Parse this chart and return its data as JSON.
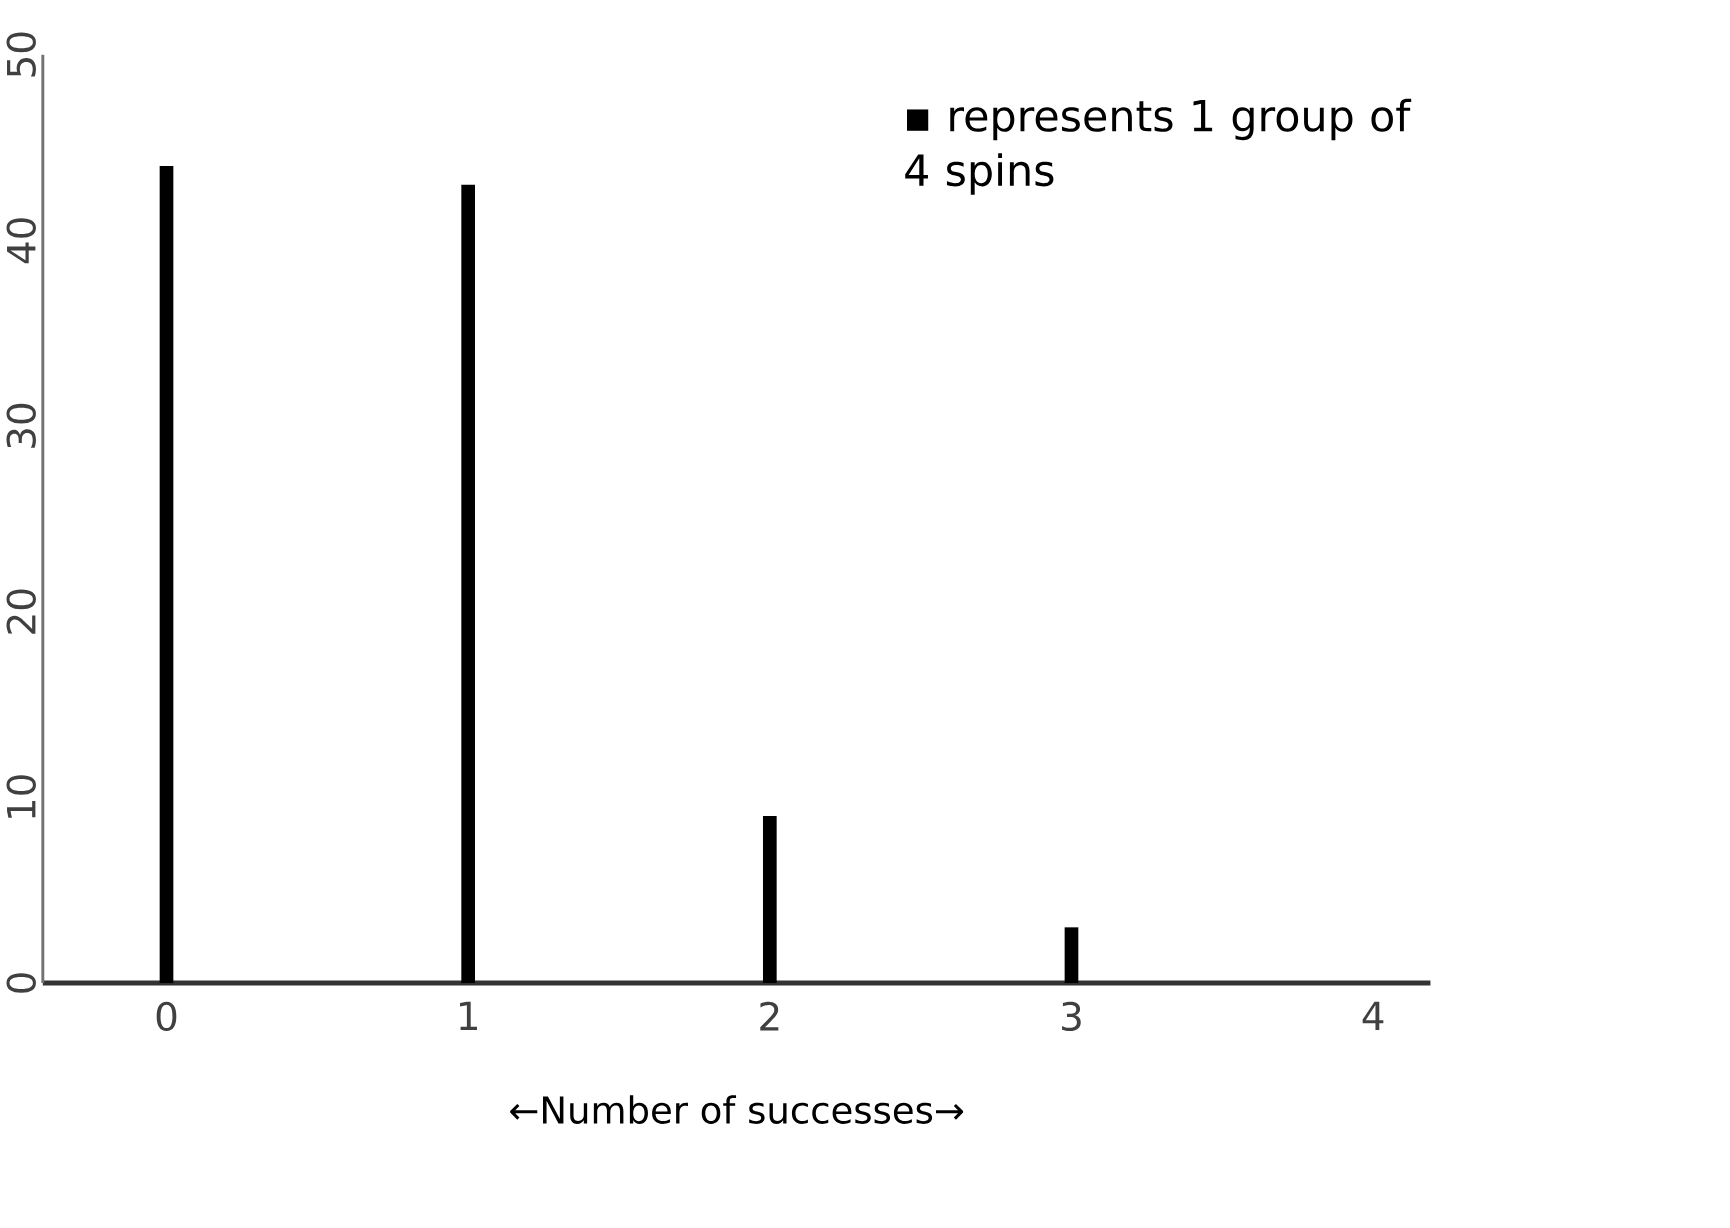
{
  "chart_data": {
    "type": "bar",
    "xlabel": "←Number of successes→",
    "categories": [
      "0",
      "1",
      "2",
      "3",
      "4"
    ],
    "values": [
      44,
      43,
      9,
      3,
      0
    ],
    "color": "#000000",
    "ylim": [
      0,
      50
    ],
    "yticks": [
      0,
      10,
      20,
      30,
      40,
      50
    ],
    "annotations": [
      "▪ represents 1 group of 4 spins"
    ]
  }
}
